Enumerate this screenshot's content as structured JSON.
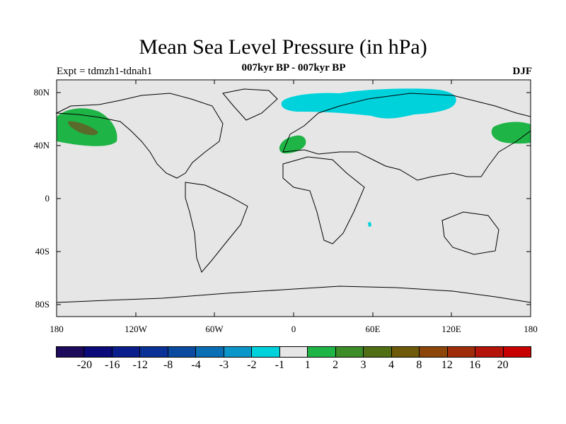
{
  "map": {
    "title": "Mean Sea Level Pressure (in hPa)",
    "subtitle": "007kyr BP - 007kyr BP",
    "experiment": "Expt = tdmzh1-tdnah1",
    "season": "DJF",
    "projection": "cylindrical-equidistant",
    "background_color": "#e6e6e6",
    "lat_labels": [
      "80N",
      "40N",
      "0",
      "40S",
      "80S"
    ],
    "lon_labels": [
      "180",
      "120W",
      "60W",
      "0",
      "60E",
      "120E",
      "180"
    ],
    "anomaly_regions": [
      {
        "region": "north-pacific-west",
        "color": "#1eb446"
      },
      {
        "region": "north-pacific-core",
        "color": "#5a6a2a"
      },
      {
        "region": "north-pacific-east",
        "color": "#1eb446"
      },
      {
        "region": "mediterranean",
        "color": "#1eb446"
      },
      {
        "region": "arctic-eurasia",
        "color": "#00d2dc"
      },
      {
        "region": "indian-ocean-spot",
        "color": "#00d2dc"
      }
    ]
  },
  "colorbar": {
    "colors": [
      "#1e0a5a",
      "#0a0a78",
      "#0a1e8c",
      "#0a3296",
      "#0a4ba0",
      "#0a6eb4",
      "#0a96c8",
      "#00d2dc",
      "#e6e6e6",
      "#1eb446",
      "#3c8c28",
      "#506e14",
      "#6e5a0a",
      "#8c460a",
      "#a02d0a",
      "#b4140a",
      "#c80000"
    ],
    "labels": [
      "-20",
      "-16",
      "-12",
      "-8",
      "-4",
      "-3",
      "-2",
      "-1",
      "1",
      "2",
      "3",
      "4",
      "8",
      "12",
      "16",
      "20"
    ]
  }
}
